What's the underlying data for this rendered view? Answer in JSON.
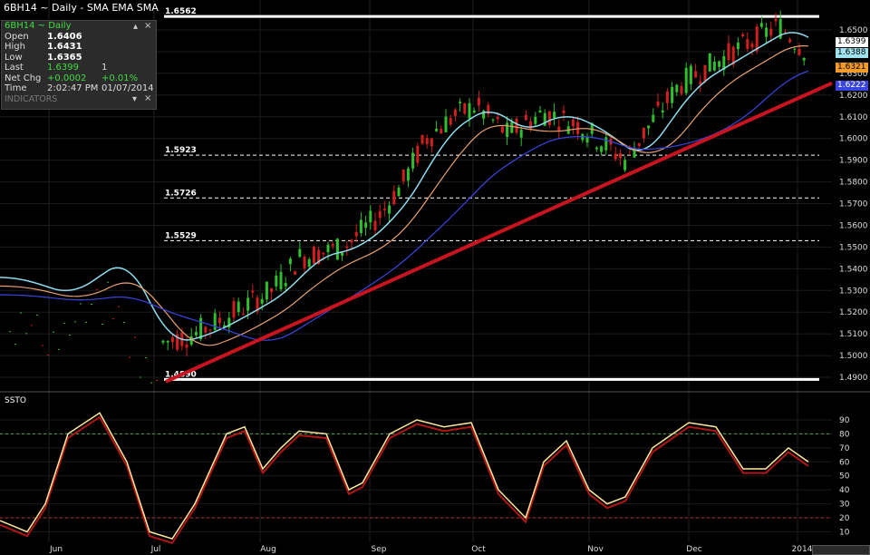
{
  "header": {
    "title": "6BH14 ~ Daily  -  SMA EMA SMA"
  },
  "info_panel": {
    "symbol": "6BH14 ~ Daily",
    "rows": [
      {
        "label": "Open",
        "value": "1.6406"
      },
      {
        "label": "High",
        "value": "1.6431"
      },
      {
        "label": "Low",
        "value": "1.6365"
      },
      {
        "label": "Last",
        "value": "1.6399",
        "extra": "1"
      },
      {
        "label": "Net Chg",
        "value": "+0.0002",
        "extra": "+0.01%"
      },
      {
        "label": "Time",
        "value": "2:02:47 PM",
        "extra": "01/07/2014"
      }
    ],
    "indicators_label": "INDICATORS",
    "collapse_icon": "chevron-up-icon",
    "close_icon": "close-icon"
  },
  "price_axis": [
    "1.6500",
    "1.6400",
    "1.6300",
    "1.6200",
    "1.6100",
    "1.6000",
    "1.5900",
    "1.5800",
    "1.5700",
    "1.5600",
    "1.5500",
    "1.5400",
    "1.5300",
    "1.5200",
    "1.5100",
    "1.5000",
    "1.4900"
  ],
  "price_tags": [
    {
      "label": "1.6399",
      "bg": "#ffffff",
      "fg": "#000000"
    },
    {
      "label": "1.6388",
      "bg": "#9fe3f0",
      "fg": "#000000"
    },
    {
      "label": "1.6321",
      "bg": "#f09a2a",
      "fg": "#000000"
    },
    {
      "label": "1.6222",
      "bg": "#3a45e0",
      "fg": "#ffffff"
    }
  ],
  "levels": [
    {
      "label": "1.6562",
      "price": 1.6562,
      "style": "solid"
    },
    {
      "label": "1.5923",
      "price": 1.5923,
      "style": "dashed"
    },
    {
      "label": "1.5726",
      "price": 1.5726,
      "style": "dashed"
    },
    {
      "label": "1.5529",
      "price": 1.5529,
      "style": "dashed"
    },
    {
      "label": "1.4890",
      "price": 1.489,
      "style": "solid"
    }
  ],
  "trendline": {
    "from": {
      "date": "Jul 1",
      "price": 1.488
    },
    "to": {
      "date": "Jan 7",
      "price": 1.6255
    },
    "color": "#c8141e"
  },
  "oscillator": {
    "label": "SSTO",
    "axis": [
      "90",
      "80",
      "70",
      "60",
      "50",
      "40",
      "30",
      "20",
      "10"
    ],
    "overbought": 80,
    "oversold": 20
  },
  "time_axis": [
    "Jun",
    "Jul",
    "Aug",
    "Sep",
    "Oct",
    "Nov",
    "Dec",
    "2014"
  ],
  "colors": {
    "up": "#2fbf2f",
    "down": "#d21e1e",
    "sma_fast": "#8fdcef",
    "ema": "#e8a070",
    "sma_slow": "#3a45e0",
    "slow_k": "#ffe9a0",
    "slow_d": "#b01616",
    "ob_line": "#3fae3f",
    "os_line": "#c03030"
  }
}
